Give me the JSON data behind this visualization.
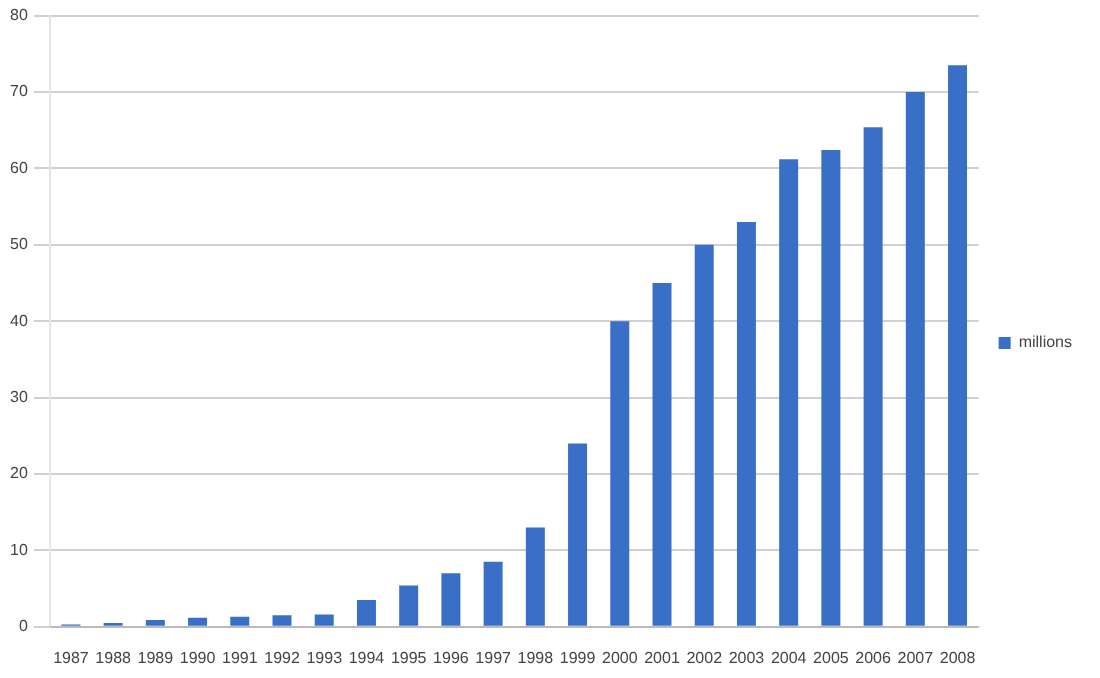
{
  "chart_data": {
    "type": "bar",
    "categories": [
      "1987",
      "1988",
      "1989",
      "1990",
      "1991",
      "1992",
      "1993",
      "1994",
      "1995",
      "1996",
      "1997",
      "1998",
      "1999",
      "2000",
      "2001",
      "2002",
      "2003",
      "2004",
      "2005",
      "2006",
      "2007",
      "2008"
    ],
    "series": [
      {
        "name": "millions",
        "color": "#3a6fc8",
        "values": [
          0.3,
          0.5,
          0.9,
          1.2,
          1.3,
          1.5,
          1.6,
          3.5,
          5.4,
          7,
          8.5,
          13,
          24,
          40,
          45,
          50,
          53,
          61.2,
          62.4,
          65.4,
          70,
          73.5
        ]
      }
    ],
    "ylim": [
      0,
      80
    ],
    "yticks": [
      0,
      10,
      20,
      30,
      40,
      50,
      60,
      70,
      80
    ],
    "grid": "y",
    "legend": "right"
  }
}
